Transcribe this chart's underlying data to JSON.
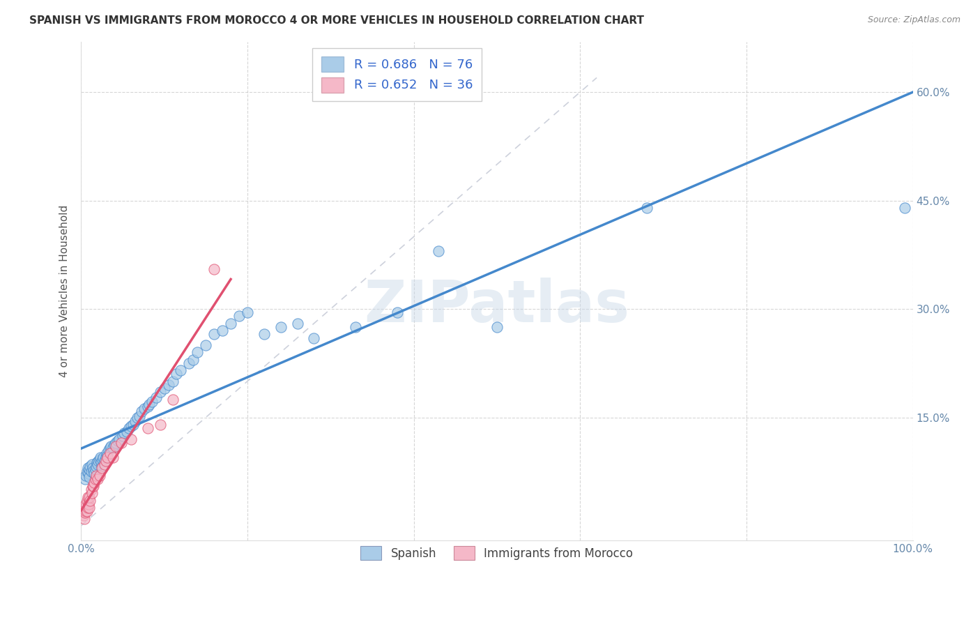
{
  "title": "SPANISH VS IMMIGRANTS FROM MOROCCO 4 OR MORE VEHICLES IN HOUSEHOLD CORRELATION CHART",
  "source": "Source: ZipAtlas.com",
  "ylabel": "4 or more Vehicles in Household",
  "xlim": [
    0,
    1.0
  ],
  "ylim": [
    -0.02,
    0.67
  ],
  "xticks": [
    0.0,
    0.2,
    0.4,
    0.6,
    0.8,
    1.0
  ],
  "xticklabels_left": [
    "0.0%",
    "",
    "",
    "",
    "",
    ""
  ],
  "xticklabels_right": [
    "",
    "",
    "",
    "",
    "",
    "100.0%"
  ],
  "ytick_positions": [
    0.15,
    0.3,
    0.45,
    0.6
  ],
  "ytick_labels": [
    "15.0%",
    "30.0%",
    "45.0%",
    "60.0%"
  ],
  "legend_R_spanish": "R = 0.686",
  "legend_N_spanish": "N = 76",
  "legend_R_morocco": "R = 0.652",
  "legend_N_morocco": "N = 36",
  "spanish_color": "#aacce8",
  "morocco_color": "#f5b8c8",
  "trendline_spanish_color": "#4488cc",
  "trendline_morocco_color": "#e05070",
  "diagonal_color": "#c8ccd8",
  "watermark": "ZIPatlas",
  "legend_blue_color": "#3366cc",
  "tick_color": "#6688aa",
  "spanish_x": [
    0.005,
    0.006,
    0.007,
    0.008,
    0.009,
    0.01,
    0.01,
    0.011,
    0.012,
    0.013,
    0.014,
    0.015,
    0.016,
    0.017,
    0.018,
    0.019,
    0.02,
    0.021,
    0.022,
    0.023,
    0.024,
    0.025,
    0.026,
    0.027,
    0.028,
    0.03,
    0.031,
    0.032,
    0.033,
    0.035,
    0.036,
    0.038,
    0.04,
    0.042,
    0.044,
    0.046,
    0.05,
    0.052,
    0.055,
    0.058,
    0.06,
    0.063,
    0.065,
    0.068,
    0.07,
    0.073,
    0.076,
    0.08,
    0.082,
    0.085,
    0.09,
    0.095,
    0.1,
    0.105,
    0.11,
    0.115,
    0.12,
    0.13,
    0.135,
    0.14,
    0.15,
    0.16,
    0.17,
    0.18,
    0.19,
    0.2,
    0.22,
    0.24,
    0.26,
    0.28,
    0.33,
    0.38,
    0.43,
    0.5,
    0.68,
    0.99
  ],
  "spanish_y": [
    0.065,
    0.07,
    0.075,
    0.08,
    0.072,
    0.068,
    0.078,
    0.082,
    0.075,
    0.085,
    0.08,
    0.076,
    0.072,
    0.078,
    0.082,
    0.088,
    0.085,
    0.09,
    0.092,
    0.095,
    0.088,
    0.082,
    0.092,
    0.095,
    0.09,
    0.095,
    0.1,
    0.098,
    0.105,
    0.108,
    0.11,
    0.108,
    0.112,
    0.115,
    0.118,
    0.12,
    0.125,
    0.128,
    0.13,
    0.135,
    0.138,
    0.14,
    0.145,
    0.15,
    0.152,
    0.158,
    0.162,
    0.165,
    0.168,
    0.172,
    0.178,
    0.185,
    0.19,
    0.195,
    0.2,
    0.21,
    0.215,
    0.225,
    0.23,
    0.24,
    0.25,
    0.265,
    0.27,
    0.28,
    0.29,
    0.295,
    0.265,
    0.275,
    0.28,
    0.26,
    0.275,
    0.295,
    0.38,
    0.275,
    0.44,
    0.44
  ],
  "morocco_x": [
    0.003,
    0.004,
    0.005,
    0.005,
    0.006,
    0.006,
    0.007,
    0.007,
    0.008,
    0.008,
    0.009,
    0.01,
    0.01,
    0.011,
    0.012,
    0.013,
    0.014,
    0.015,
    0.016,
    0.017,
    0.018,
    0.02,
    0.022,
    0.025,
    0.028,
    0.03,
    0.032,
    0.035,
    0.038,
    0.042,
    0.048,
    0.06,
    0.08,
    0.095,
    0.11,
    0.16
  ],
  "morocco_y": [
    0.015,
    0.01,
    0.018,
    0.025,
    0.02,
    0.03,
    0.02,
    0.035,
    0.025,
    0.04,
    0.03,
    0.025,
    0.04,
    0.035,
    0.05,
    0.045,
    0.055,
    0.055,
    0.06,
    0.065,
    0.07,
    0.065,
    0.07,
    0.08,
    0.085,
    0.09,
    0.095,
    0.1,
    0.095,
    0.11,
    0.115,
    0.12,
    0.135,
    0.14,
    0.175,
    0.355
  ]
}
